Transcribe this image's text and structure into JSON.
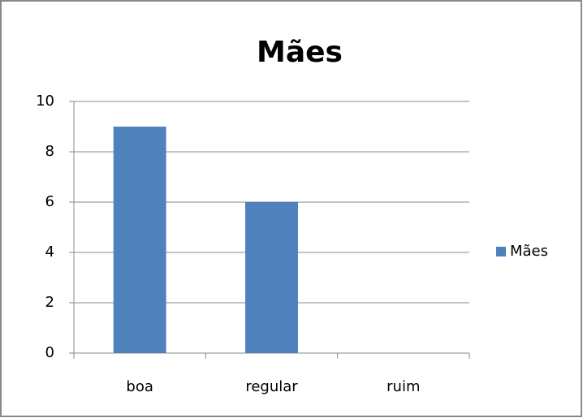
{
  "chart_data": {
    "type": "bar",
    "title": "Mães",
    "categories": [
      "boa",
      "regular",
      "ruim"
    ],
    "series": [
      {
        "name": "Mães",
        "color": "#4f81bd",
        "values": [
          9,
          6,
          0
        ]
      }
    ],
    "ylim": [
      0,
      10
    ],
    "yticks": [
      0,
      2,
      4,
      6,
      8,
      10
    ],
    "grid": true,
    "legend": "right"
  }
}
